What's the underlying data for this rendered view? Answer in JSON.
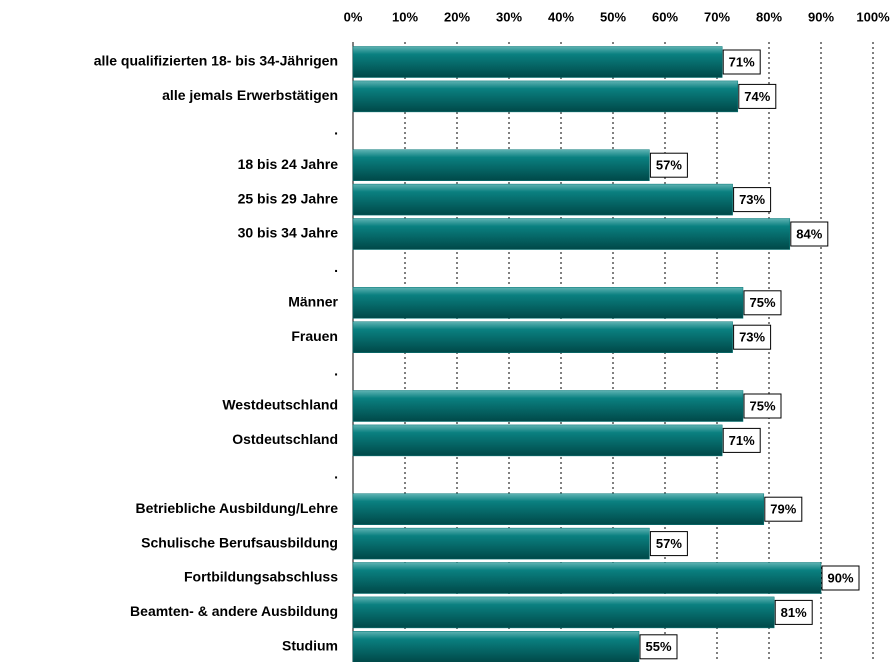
{
  "chart_data": {
    "type": "barh",
    "categories": [
      "alle qualifizierten 18- bis 34-Jährigen",
      "alle jemals Erwerbstätigen ",
      ".",
      "18 bis 24 Jahre",
      "25 bis 29 Jahre",
      "30 bis 34 Jahre",
      ".",
      "Männer",
      "Frauen",
      ".",
      "Westdeutschland",
      "Ostdeutschland",
      ".",
      "Betriebliche Ausbildung/Lehre",
      "Schulische Berufsausbildung",
      "Fortbildungsabschluss",
      "Beamten- & andere Ausbildung ",
      "Studium"
    ],
    "values": [
      71,
      74,
      null,
      57,
      73,
      84,
      null,
      75,
      73,
      null,
      75,
      71,
      null,
      79,
      57,
      90,
      81,
      55
    ],
    "value_labels": [
      "71%",
      "74%",
      null,
      "57%",
      "73%",
      "84%",
      null,
      "75%",
      "73%",
      null,
      "75%",
      "71%",
      null,
      "79%",
      "57%",
      "90%",
      "81%",
      "55%"
    ],
    "color": "#007474",
    "xlim": [
      0,
      100
    ],
    "xticks": [
      {
        "value": 0,
        "label": "0%"
      },
      {
        "value": 10,
        "label": "10%"
      },
      {
        "value": 20,
        "label": "20%"
      },
      {
        "value": 30,
        "label": "30%"
      },
      {
        "value": 40,
        "label": "40%"
      },
      {
        "value": 50,
        "label": "50%"
      },
      {
        "value": 60,
        "label": "60%"
      },
      {
        "value": 70,
        "label": "70%"
      },
      {
        "value": 80,
        "label": "80%"
      },
      {
        "value": 90,
        "label": "90%"
      },
      {
        "value": 100,
        "label": "100%"
      }
    ],
    "grid": true
  }
}
